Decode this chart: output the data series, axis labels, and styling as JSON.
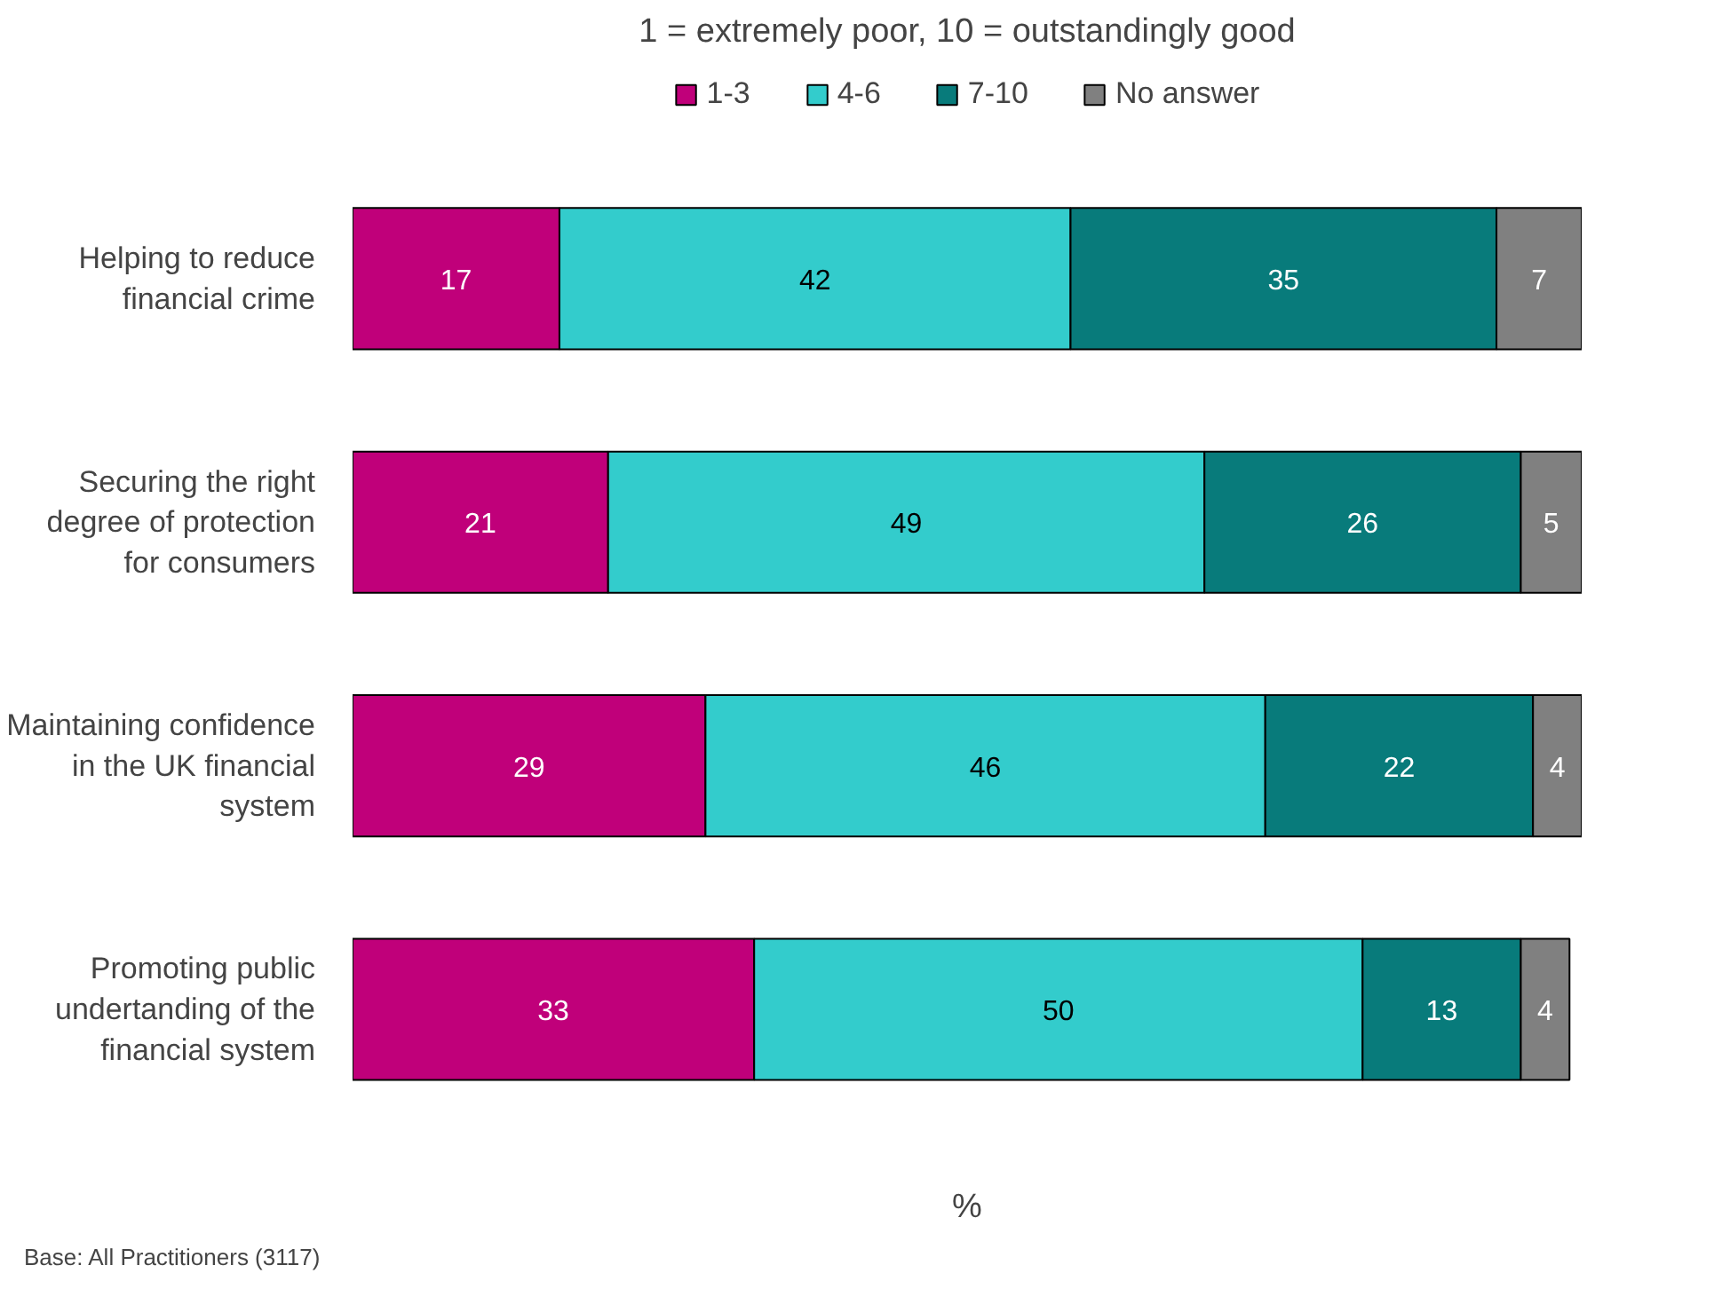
{
  "chart_data": {
    "type": "bar",
    "orientation": "horizontal",
    "stacked": true,
    "data_labels": true,
    "legend": "top",
    "grid": false,
    "title": "1 = extremely poor, 10 = outstandingly good",
    "xlabel": "%",
    "categories": [
      "Helping to reduce financial crime",
      "Securing the right degree of protection for consumers",
      "Maintaining confidence in the UK financial system",
      "Promoting public undertanding of the financial system"
    ],
    "series": [
      {
        "name": "1-3",
        "color": "#c0007a",
        "values": [
          17,
          21,
          29,
          33
        ]
      },
      {
        "name": "4-6",
        "color": "#33cccc",
        "values": [
          42,
          49,
          46,
          50
        ]
      },
      {
        "name": "7-10",
        "color": "#087b7b",
        "values": [
          35,
          26,
          22,
          13
        ]
      },
      {
        "name": "No answer",
        "color": "#808080",
        "values": [
          7,
          5,
          4,
          4
        ]
      }
    ],
    "annotations": [
      "Base: All Practitioners (3117)"
    ]
  }
}
